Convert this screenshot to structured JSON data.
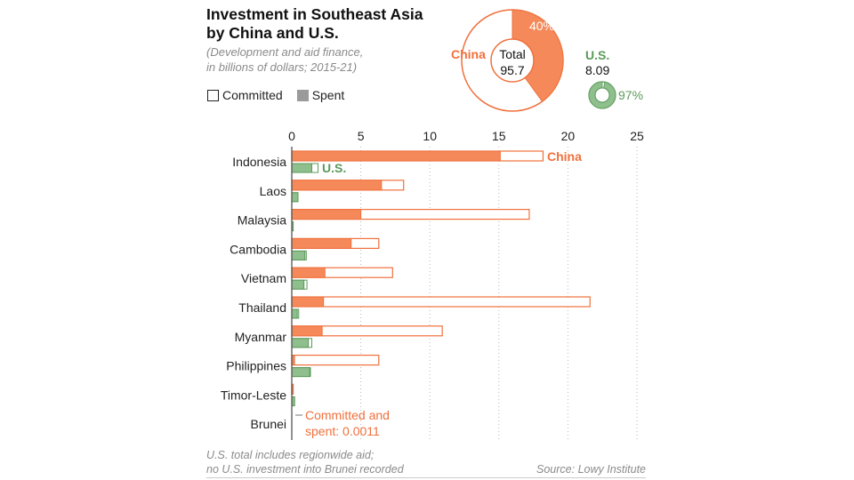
{
  "title_line1": "Investment in Southeast Asia",
  "title_line2": "by China and U.S.",
  "subtitle_line1": "(Development and aid finance,",
  "subtitle_line2": "in billions of dollars; 2015-21)",
  "legend": {
    "committed": "Committed",
    "spent": "Spent"
  },
  "donut": {
    "china_label": "China",
    "total_label": "Total",
    "china_total": "95.7",
    "china_spent_pct": 40,
    "china_spent_pct_label": "40%",
    "us_label": "U.S.",
    "us_total": "8.09",
    "us_spent_pct": 97,
    "us_spent_pct_label": "97%"
  },
  "colors": {
    "china": "#f0703c",
    "china_fill": "#f5895a",
    "us": "#5a9a5a",
    "us_fill": "#8fbf8c"
  },
  "chart_data": {
    "type": "bar",
    "orientation": "horizontal",
    "categories": [
      "Indonesia",
      "Laos",
      "Malaysia",
      "Cambodia",
      "Vietnam",
      "Thailand",
      "Myanmar",
      "Philippines",
      "Timor-Leste",
      "Brunei"
    ],
    "series": [
      {
        "name": "China",
        "committed": [
          18.2,
          8.1,
          17.2,
          6.3,
          7.3,
          21.6,
          10.9,
          6.3,
          0.1,
          0.0011
        ],
        "spent": [
          15.1,
          6.5,
          5.0,
          4.3,
          2.4,
          2.3,
          2.2,
          0.2,
          0.1,
          0.0011
        ]
      },
      {
        "name": "U.S.",
        "committed": [
          1.9,
          0.45,
          0.1,
          1.05,
          1.1,
          0.5,
          1.45,
          1.35,
          0.2,
          0
        ],
        "spent": [
          1.45,
          0.45,
          0.1,
          0.95,
          0.88,
          0.4,
          1.2,
          1.3,
          0.2,
          0
        ]
      }
    ],
    "xlim": [
      0,
      25
    ],
    "xticks": [
      "0",
      "5",
      "10",
      "15",
      "20",
      "25"
    ],
    "grid": true,
    "annotation_line1": "Committed and",
    "annotation_line2": "spent: 0.0011"
  },
  "footnote_line1": "U.S. total includes regionwide aid;",
  "footnote_line2": "no U.S. investment into Brunei recorded",
  "source": "Source: Lowy Institute"
}
